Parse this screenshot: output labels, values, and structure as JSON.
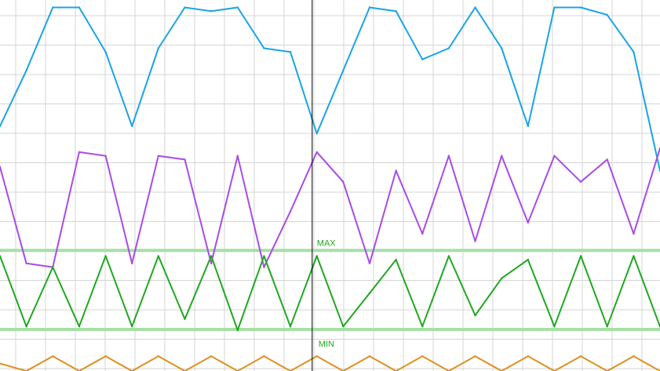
{
  "colors": {
    "background": "#ffffff",
    "grid": "#d4d4d4",
    "cursor": "#000000",
    "blue": "#1aa3e8",
    "purple": "#a84be8",
    "green": "#1fa81f",
    "green_band": "#a6e0a6",
    "orange": "#e0901f"
  },
  "markers": {
    "max_label": "MAX",
    "min_label": "MIN"
  },
  "chart_data": {
    "type": "line",
    "title": "",
    "xlabel": "",
    "ylabel": "",
    "grid": true,
    "xlim": [
      0,
      100
    ],
    "ylim": [
      0,
      100
    ],
    "x": [
      0,
      4,
      8,
      12,
      16,
      20,
      24,
      28,
      32,
      36,
      40,
      44,
      48,
      52,
      56,
      60,
      64,
      68,
      72,
      76,
      80,
      84,
      88,
      92,
      96,
      100
    ],
    "cursor_x": 47.3,
    "reference_lines": [
      {
        "label": "MAX",
        "y": 32.5
      },
      {
        "label": "MIN",
        "y": 11.2
      }
    ],
    "series": [
      {
        "color": "blue",
        "values": [
          66,
          81,
          98,
          98,
          86,
          66,
          87,
          98,
          97,
          98,
          87,
          86,
          64,
          81,
          98,
          97,
          84,
          87,
          98,
          87,
          66,
          98,
          98,
          96,
          86,
          54
        ]
      },
      {
        "color": "purple",
        "values": [
          55,
          29,
          28,
          59,
          58,
          29,
          58,
          57,
          29,
          58,
          28,
          43,
          59,
          51,
          29,
          54,
          37,
          58,
          35,
          58,
          40,
          58,
          51,
          57,
          37,
          60
        ]
      },
      {
        "color": "green",
        "values": [
          31,
          12,
          28,
          12,
          31,
          12,
          31,
          14,
          31,
          11,
          31,
          12,
          31,
          12,
          21,
          30,
          12,
          31,
          15,
          25,
          30,
          12,
          31,
          12,
          31,
          12
        ]
      },
      {
        "color": "orange",
        "values": [
          2,
          0,
          4,
          0,
          4,
          0,
          4,
          0,
          4,
          0,
          4,
          0,
          4,
          0,
          4,
          0,
          4,
          0,
          4,
          0,
          4,
          0,
          4,
          0,
          4,
          0
        ]
      }
    ]
  }
}
